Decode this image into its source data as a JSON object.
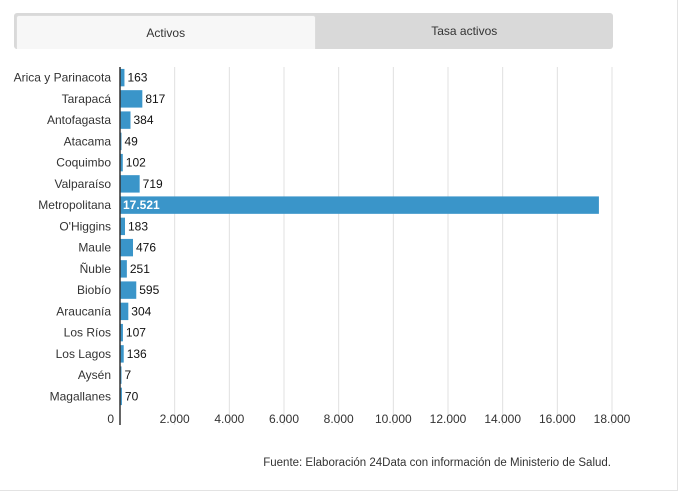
{
  "tabs": [
    {
      "label": "Activos",
      "active": true
    },
    {
      "label": "Tasa activos",
      "active": false
    }
  ],
  "source": "Fuente: Elaboración 24Data con información de Ministerio de Salud.",
  "colors": {
    "bar": "#3a95c9",
    "grid": "#e0e0e0",
    "axis": "#333333",
    "text": "#333333"
  },
  "chart_data": {
    "type": "bar",
    "orientation": "horizontal",
    "title": "",
    "xlabel": "",
    "ylabel": "",
    "categories": [
      "Arica y Parinacota",
      "Tarapacá",
      "Antofagasta",
      "Atacama",
      "Coquimbo",
      "Valparaíso",
      "Metropolitana",
      "O'Higgins",
      "Maule",
      "Ñuble",
      "Biobío",
      "Araucanía",
      "Los Ríos",
      "Los Lagos",
      "Aysén",
      "Magallanes"
    ],
    "values": [
      163,
      817,
      384,
      49,
      102,
      719,
      17521,
      183,
      476,
      251,
      595,
      304,
      107,
      136,
      7,
      70
    ],
    "value_labels": [
      "163",
      "817",
      "384",
      "49",
      "102",
      "719",
      "17.521",
      "183",
      "476",
      "251",
      "595",
      "304",
      "107",
      "136",
      "7",
      "70"
    ],
    "xlim": [
      0,
      18000
    ],
    "xticks": [
      0,
      2000,
      4000,
      6000,
      8000,
      10000,
      12000,
      14000,
      16000,
      18000
    ],
    "xtick_labels": [
      "0",
      "2.000",
      "4.000",
      "6.000",
      "8.000",
      "10.000",
      "12.000",
      "14.000",
      "16.000",
      "18.000"
    ],
    "grid": true,
    "legend": "none"
  }
}
